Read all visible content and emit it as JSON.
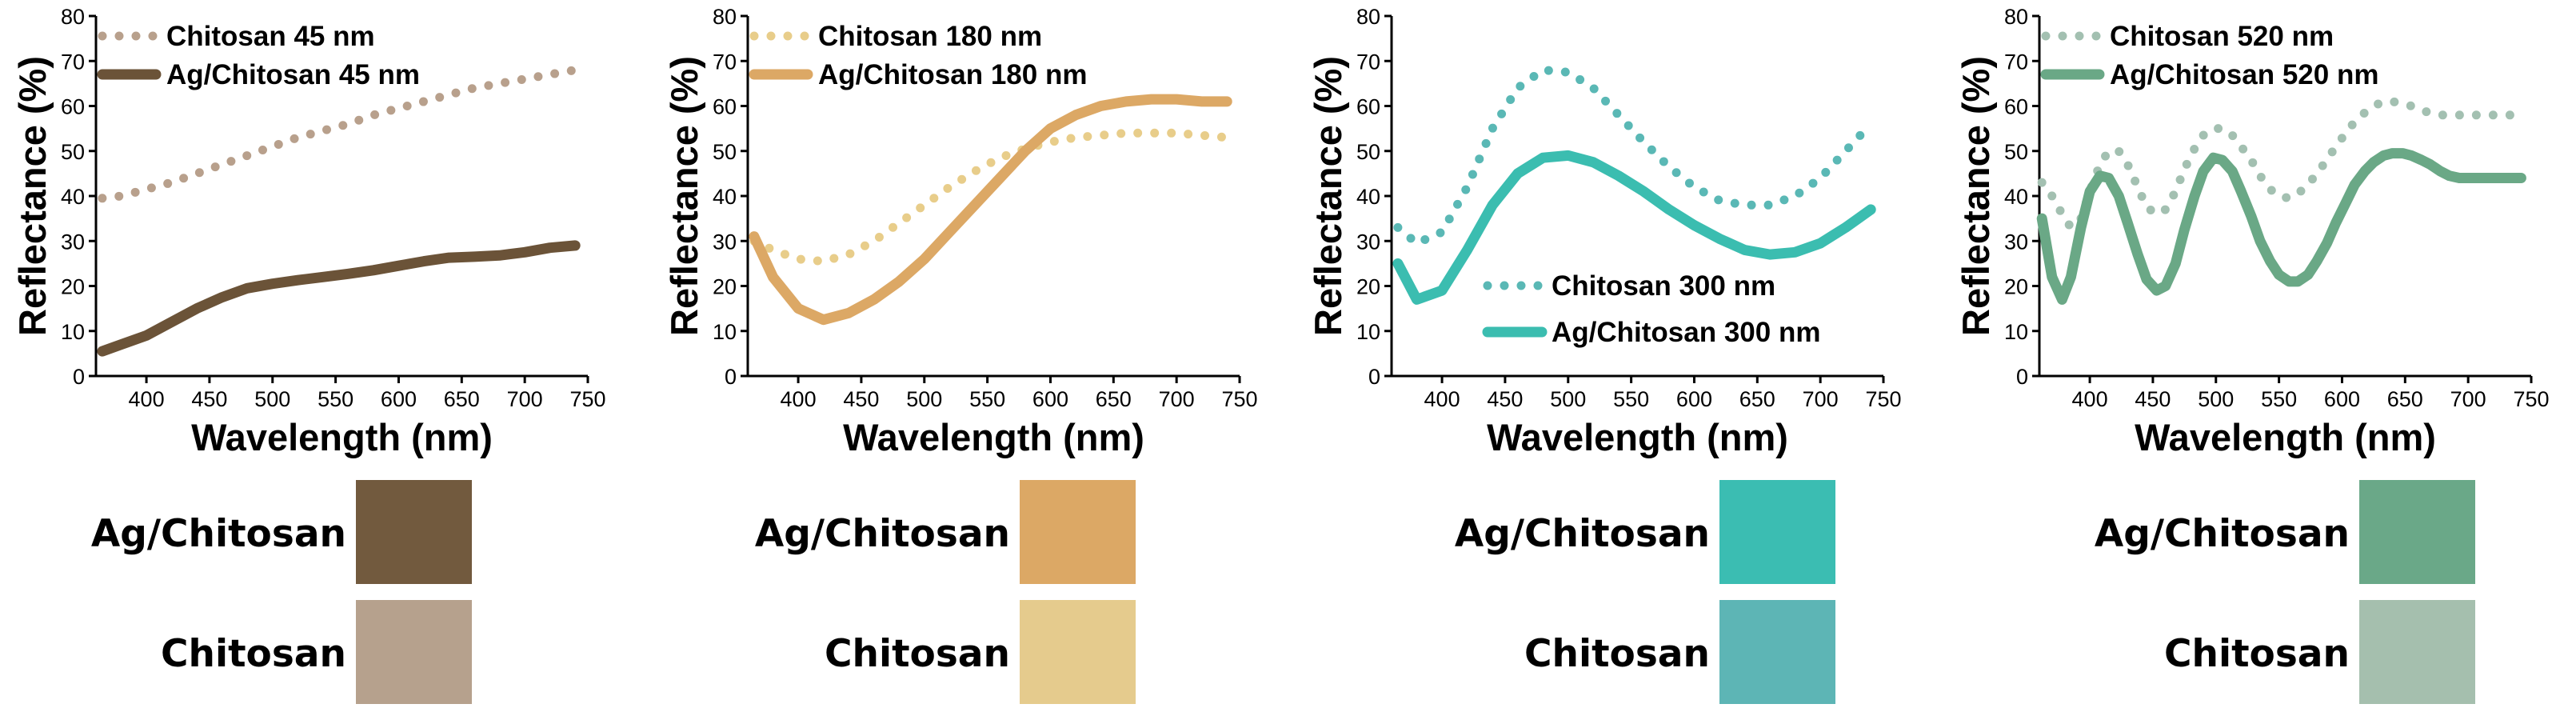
{
  "chart_data": [
    {
      "type": "line",
      "panel": "45 nm",
      "xlabel": "Wavelength (nm)",
      "ylabel": "Reflectance (%)",
      "xlim": [
        360,
        750
      ],
      "ylim": [
        0,
        80
      ],
      "xticks": [
        400,
        450,
        500,
        550,
        600,
        650,
        700,
        750
      ],
      "yticks": [
        0,
        10,
        20,
        30,
        40,
        50,
        60,
        70,
        80
      ],
      "legend_position": "top-left",
      "x": [
        365,
        380,
        400,
        420,
        440,
        460,
        480,
        500,
        520,
        540,
        560,
        580,
        600,
        620,
        640,
        660,
        680,
        700,
        720,
        740
      ],
      "series": [
        {
          "name": "Chitosan 45 nm",
          "style": "dotted",
          "color": "#b8a08c",
          "values": [
            39.5,
            40,
            41.5,
            43,
            45,
            47,
            49,
            51,
            53,
            54.5,
            56,
            58,
            59.5,
            61,
            62.5,
            64,
            65,
            66,
            67,
            68
          ]
        },
        {
          "name": "Ag/Chitosan 45 nm",
          "style": "solid",
          "color": "#6b5338",
          "values": [
            5.5,
            7,
            9,
            12,
            15,
            17.5,
            19.5,
            20.5,
            21.3,
            22,
            22.7,
            23.5,
            24.5,
            25.5,
            26.3,
            26.5,
            26.8,
            27.5,
            28.5,
            29
          ]
        }
      ]
    },
    {
      "type": "line",
      "panel": "180 nm",
      "xlabel": "Wavelength (nm)",
      "ylabel": "Reflectance (%)",
      "xlim": [
        360,
        750
      ],
      "ylim": [
        0,
        80
      ],
      "xticks": [
        400,
        450,
        500,
        550,
        600,
        650,
        700,
        750
      ],
      "yticks": [
        0,
        10,
        20,
        30,
        40,
        50,
        60,
        70,
        80
      ],
      "legend_position": "top-left",
      "x": [
        365,
        380,
        400,
        420,
        440,
        460,
        480,
        500,
        520,
        540,
        560,
        580,
        600,
        620,
        640,
        660,
        680,
        700,
        720,
        740
      ],
      "series": [
        {
          "name": "Chitosan 180 nm",
          "style": "dotted",
          "color": "#e8cd8a",
          "values": [
            30,
            28,
            26,
            25.5,
            27,
            30,
            34,
            38,
            42,
            45.5,
            48.5,
            50.5,
            52,
            53,
            53.5,
            54,
            54,
            54,
            53.5,
            53
          ]
        },
        {
          "name": "Ag/Chitosan 180 nm",
          "style": "solid",
          "color": "#dca865",
          "values": [
            31,
            22,
            15,
            12.5,
            14,
            17,
            21,
            26,
            32,
            38,
            44,
            50,
            55,
            58,
            60,
            61,
            61.5,
            61.5,
            61,
            61
          ]
        }
      ]
    },
    {
      "type": "line",
      "panel": "300 nm",
      "xlabel": "Wavelength (nm)",
      "ylabel": "Reflectance (%)",
      "xlim": [
        360,
        750
      ],
      "ylim": [
        0,
        80
      ],
      "xticks": [
        400,
        450,
        500,
        550,
        600,
        650,
        700,
        750
      ],
      "yticks": [
        0,
        10,
        20,
        30,
        40,
        50,
        60,
        70,
        80
      ],
      "legend_position": "bottom-right",
      "x": [
        365,
        380,
        400,
        420,
        440,
        460,
        480,
        500,
        520,
        540,
        560,
        580,
        600,
        620,
        640,
        660,
        680,
        700,
        720,
        740
      ],
      "series": [
        {
          "name": "Chitosan 300 nm",
          "style": "dotted",
          "color": "#5ab8b5",
          "values": [
            33,
            29.5,
            32,
            42,
            55,
            64,
            68,
            67.5,
            64,
            58,
            52,
            46.5,
            42,
            39,
            38,
            38,
            40,
            44,
            50,
            56
          ]
        },
        {
          "name": "Ag/Chitosan 300 nm",
          "style": "solid",
          "color": "#3bbdb0",
          "values": [
            25,
            17,
            19,
            28,
            38,
            45,
            48.5,
            49,
            47.5,
            44.5,
            41,
            37,
            33.5,
            30.5,
            28,
            27,
            27.5,
            29.5,
            33,
            37
          ]
        }
      ]
    },
    {
      "type": "line",
      "panel": "520 nm",
      "xlabel": "Wavelength (nm)",
      "ylabel": "Reflectance (%)",
      "xlim": [
        360,
        750
      ],
      "ylim": [
        0,
        80
      ],
      "xticks": [
        400,
        450,
        500,
        550,
        600,
        650,
        700,
        750
      ],
      "yticks": [
        0,
        10,
        20,
        30,
        40,
        50,
        60,
        70,
        80
      ],
      "legend_position": "top-left",
      "x": [
        362,
        370,
        378,
        385,
        393,
        400,
        408,
        415,
        423,
        430,
        438,
        445,
        453,
        460,
        468,
        475,
        483,
        490,
        498,
        505,
        513,
        520,
        528,
        535,
        543,
        550,
        558,
        565,
        573,
        580,
        588,
        595,
        603,
        610,
        618,
        625,
        633,
        640,
        648,
        655,
        663,
        670,
        678,
        685,
        693,
        700,
        708,
        715,
        723,
        730,
        738,
        742
      ],
      "series": [
        {
          "name": "Chitosan 520 nm",
          "style": "dotted",
          "color": "#a3c0b1",
          "values": [
            43,
            40,
            36,
            33,
            35,
            41,
            47,
            50,
            50,
            47,
            42,
            37.5,
            36,
            37,
            41,
            46,
            50.5,
            53.5,
            55,
            55,
            53.5,
            51,
            48,
            44.5,
            41.5,
            40,
            39.5,
            40.5,
            42.5,
            45,
            48,
            51,
            54,
            56.5,
            58.5,
            60,
            61,
            61,
            60.5,
            60,
            59,
            58.5,
            58,
            58,
            58,
            58,
            58,
            58,
            58,
            58,
            58,
            58
          ]
        },
        {
          "name": "Ag/Chitosan 520 nm",
          "style": "solid",
          "color": "#6aa886",
          "values": [
            35,
            22,
            17,
            22,
            33,
            41,
            44.5,
            44,
            40,
            34,
            27,
            21.5,
            19,
            20,
            25,
            32.5,
            40,
            45.5,
            48.5,
            48,
            45.5,
            41,
            35.5,
            30,
            25.5,
            22.5,
            21,
            21,
            22.5,
            25.5,
            29.5,
            34,
            38.5,
            42.5,
            45.5,
            47.5,
            49,
            49.5,
            49.5,
            49,
            48,
            47,
            45.5,
            44.5,
            44,
            44,
            44,
            44,
            44,
            44,
            44,
            44
          ]
        }
      ]
    }
  ],
  "swatches": [
    {
      "ag_label": "Ag/Chitosan",
      "ag_color": "#725a3e",
      "ch_label": "Chitosan",
      "ch_color": "#b6a18d"
    },
    {
      "ag_label": "Ag/Chitosan",
      "ag_color": "#dca865",
      "ch_label": "Chitosan",
      "ch_color": "#e5cb8d"
    },
    {
      "ag_label": "Ag/Chitosan",
      "ag_color": "#3bbdb2",
      "ch_label": "Chitosan",
      "ch_color": "#5db5b5"
    },
    {
      "ag_label": "Ag/Chitosan",
      "ag_color": "#6aa888",
      "ch_label": "Chitosan",
      "ch_color": "#a5bfae"
    }
  ]
}
